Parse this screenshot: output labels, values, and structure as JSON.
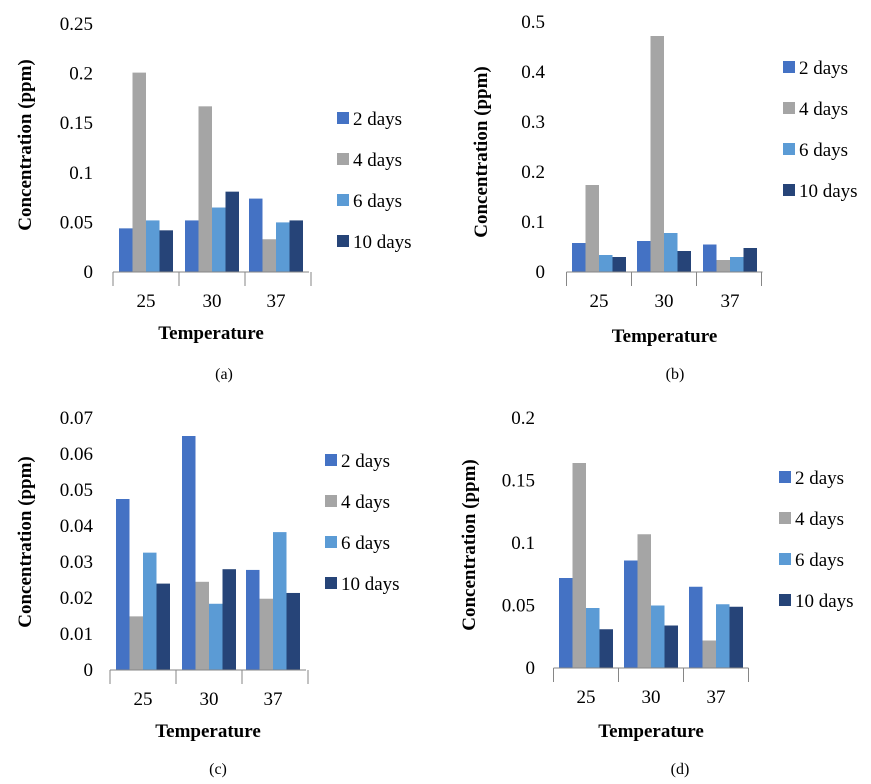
{
  "legend_colors": [
    "#4472C4",
    "#A5A5A5",
    "#5B9BD5",
    "#264478"
  ],
  "chart_data": [
    {
      "type": "bar",
      "caption": "(a)",
      "categories": [
        "25",
        "30",
        "37"
      ],
      "xlabel": "Temperature",
      "ylabel": "Concentration (ppm)",
      "ylim": [
        0,
        0.25
      ],
      "yticks": [
        "0",
        "0.05",
        "0.1",
        "0.15",
        "0.2",
        "0.25"
      ],
      "series": [
        {
          "name": "2 days",
          "values": [
            0.044,
            0.052,
            0.074
          ]
        },
        {
          "name": "4 days",
          "values": [
            0.201,
            0.167,
            0.033
          ]
        },
        {
          "name": "6 days",
          "values": [
            0.052,
            0.065,
            0.05
          ]
        },
        {
          "name": "10 days",
          "values": [
            0.042,
            0.081,
            0.052
          ]
        }
      ],
      "legend_position": "right"
    },
    {
      "type": "bar",
      "caption": "(b)",
      "categories": [
        "25",
        "30",
        "37"
      ],
      "xlabel": "Temperature",
      "ylabel": "Concentration (ppm)",
      "ylim": [
        0,
        0.5
      ],
      "yticks": [
        "0",
        "0.1",
        "0.2",
        "0.3",
        "0.4",
        "0.5"
      ],
      "series": [
        {
          "name": "2 days",
          "values": [
            0.058,
            0.062,
            0.055
          ]
        },
        {
          "name": "4 days",
          "values": [
            0.174,
            0.472,
            0.024
          ]
        },
        {
          "name": "6 days",
          "values": [
            0.034,
            0.078,
            0.03
          ]
        },
        {
          "name": "10 days",
          "values": [
            0.03,
            0.042,
            0.048
          ]
        }
      ],
      "legend_position": "right"
    },
    {
      "type": "bar",
      "caption": "(c)",
      "categories": [
        "25",
        "30",
        "37"
      ],
      "xlabel": "Temperature",
      "ylabel": "Concentration (ppm)",
      "ylim": [
        0,
        0.07
      ],
      "yticks": [
        "0",
        "0.01",
        "0.02",
        "0.03",
        "0.04",
        "0.05",
        "0.06",
        "0.07"
      ],
      "series": [
        {
          "name": "2 days",
          "values": [
            0.0475,
            0.065,
            0.0278
          ]
        },
        {
          "name": "4 days",
          "values": [
            0.0149,
            0.0245,
            0.0198
          ]
        },
        {
          "name": "6 days",
          "values": [
            0.0326,
            0.0184,
            0.0383
          ]
        },
        {
          "name": "10 days",
          "values": [
            0.024,
            0.028,
            0.0214
          ]
        }
      ],
      "legend_position": "right"
    },
    {
      "type": "bar",
      "caption": "(d)",
      "categories": [
        "25",
        "30",
        "37"
      ],
      "xlabel": "Temperature",
      "ylabel": "Concentration (ppm)",
      "ylim": [
        0,
        0.2
      ],
      "yticks": [
        "0",
        "0.05",
        "0.1",
        "0.15",
        "0.2"
      ],
      "series": [
        {
          "name": "2 days",
          "values": [
            0.072,
            0.086,
            0.065
          ]
        },
        {
          "name": "4 days",
          "values": [
            0.164,
            0.107,
            0.022
          ]
        },
        {
          "name": "6 days",
          "values": [
            0.048,
            0.05,
            0.051
          ]
        },
        {
          "name": "10 days",
          "values": [
            0.031,
            0.034,
            0.049
          ]
        }
      ],
      "legend_position": "right"
    }
  ]
}
